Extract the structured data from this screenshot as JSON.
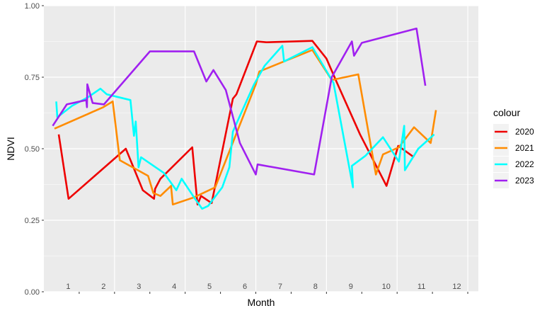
{
  "chart_data": {
    "type": "line",
    "xlabel": "Month",
    "ylabel": "NDVI",
    "ylim": [
      0,
      1
    ],
    "y_ticks": [
      "0.00",
      "0.25",
      "0.50",
      "0.75",
      "1.00"
    ],
    "x_ticks": [
      "1",
      "2",
      "3",
      "4",
      "5",
      "6",
      "7",
      "8",
      "9",
      "10",
      "11",
      "12"
    ],
    "legend_title": "colour",
    "legend_position": "right",
    "background": "#ebebeb",
    "grid": true,
    "series": [
      {
        "name": "2020",
        "color": "#ee0000",
        "points": [
          [
            0.42,
            0.55
          ],
          [
            0.7,
            0.325
          ],
          [
            2.32,
            0.5
          ],
          [
            2.8,
            0.355
          ],
          [
            3.12,
            0.325
          ],
          [
            3.15,
            0.36
          ],
          [
            3.3,
            0.395
          ],
          [
            4.2,
            0.505
          ],
          [
            4.35,
            0.305
          ],
          [
            4.45,
            0.335
          ],
          [
            4.75,
            0.31
          ],
          [
            5.35,
            0.675
          ],
          [
            5.45,
            0.69
          ],
          [
            6.03,
            0.875
          ],
          [
            6.3,
            0.872
          ],
          [
            7.6,
            0.877
          ],
          [
            8.0,
            0.815
          ],
          [
            8.3,
            0.73
          ],
          [
            8.95,
            0.55
          ],
          [
            9.7,
            0.37
          ],
          [
            10.03,
            0.51
          ],
          [
            10.48,
            0.47
          ]
        ]
      },
      {
        "name": "2021",
        "color": "#ff8c00",
        "points": [
          [
            0.3,
            0.57
          ],
          [
            1.68,
            0.645
          ],
          [
            1.95,
            0.665
          ],
          [
            2.15,
            0.46
          ],
          [
            2.95,
            0.405
          ],
          [
            3.1,
            0.345
          ],
          [
            3.3,
            0.335
          ],
          [
            3.6,
            0.37
          ],
          [
            3.65,
            0.305
          ],
          [
            4.25,
            0.33
          ],
          [
            4.85,
            0.365
          ],
          [
            6.0,
            0.725
          ],
          [
            6.1,
            0.77
          ],
          [
            7.6,
            0.845
          ],
          [
            8.15,
            0.74
          ],
          [
            8.9,
            0.76
          ],
          [
            9.4,
            0.41
          ],
          [
            9.6,
            0.48
          ],
          [
            10.05,
            0.505
          ],
          [
            10.48,
            0.575
          ],
          [
            10.95,
            0.52
          ],
          [
            11.1,
            0.635
          ]
        ]
      },
      {
        "name": "2022",
        "color": "#00ffff",
        "points": [
          [
            0.35,
            0.665
          ],
          [
            0.38,
            0.61
          ],
          [
            0.8,
            0.65
          ],
          [
            1.25,
            0.68
          ],
          [
            1.6,
            0.71
          ],
          [
            1.78,
            0.69
          ],
          [
            2.45,
            0.67
          ],
          [
            2.55,
            0.545
          ],
          [
            2.6,
            0.595
          ],
          [
            2.68,
            0.435
          ],
          [
            2.75,
            0.47
          ],
          [
            3.4,
            0.415
          ],
          [
            3.75,
            0.355
          ],
          [
            3.9,
            0.395
          ],
          [
            4.25,
            0.33
          ],
          [
            4.48,
            0.29
          ],
          [
            4.65,
            0.3
          ],
          [
            5.05,
            0.365
          ],
          [
            5.25,
            0.435
          ],
          [
            5.35,
            0.56
          ],
          [
            5.95,
            0.725
          ],
          [
            6.25,
            0.79
          ],
          [
            6.75,
            0.86
          ],
          [
            6.8,
            0.805
          ],
          [
            7.6,
            0.855
          ],
          [
            8.2,
            0.73
          ],
          [
            8.75,
            0.365
          ],
          [
            8.72,
            0.44
          ],
          [
            9.1,
            0.475
          ],
          [
            9.6,
            0.54
          ],
          [
            10.05,
            0.455
          ],
          [
            10.2,
            0.58
          ],
          [
            10.22,
            0.425
          ],
          [
            10.6,
            0.5
          ],
          [
            11.05,
            0.55
          ]
        ]
      },
      {
        "name": "2023",
        "color": "#a020f0",
        "points": [
          [
            0.25,
            0.58
          ],
          [
            0.65,
            0.655
          ],
          [
            1.2,
            0.67
          ],
          [
            1.22,
            0.645
          ],
          [
            1.23,
            0.725
          ],
          [
            1.38,
            0.66
          ],
          [
            1.7,
            0.655
          ],
          [
            3.0,
            0.84
          ],
          [
            4.25,
            0.84
          ],
          [
            4.6,
            0.735
          ],
          [
            4.8,
            0.775
          ],
          [
            5.15,
            0.705
          ],
          [
            5.55,
            0.52
          ],
          [
            6.0,
            0.41
          ],
          [
            6.05,
            0.445
          ],
          [
            7.65,
            0.41
          ],
          [
            8.15,
            0.75
          ],
          [
            8.72,
            0.875
          ],
          [
            8.78,
            0.825
          ],
          [
            9.0,
            0.87
          ],
          [
            10.55,
            0.92
          ],
          [
            10.8,
            0.72
          ]
        ]
      }
    ]
  }
}
